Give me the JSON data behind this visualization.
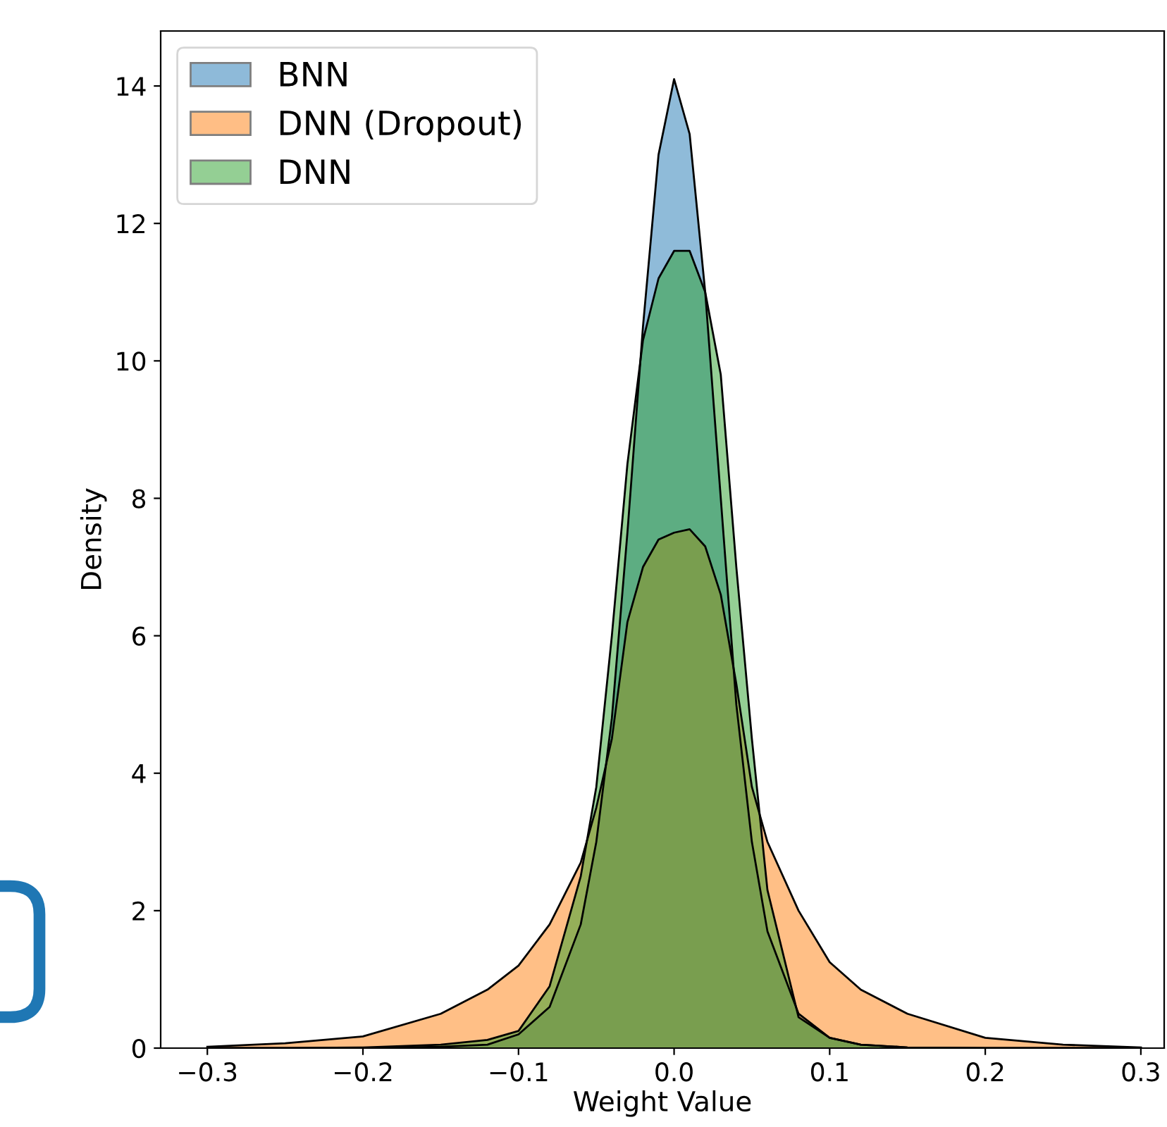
{
  "chart_data": {
    "type": "area",
    "xlabel": "Weight Value",
    "ylabel": "Density",
    "xlim": [
      -0.33,
      0.315
    ],
    "ylim": [
      0,
      14.8
    ],
    "xticks": [
      {
        "value": -0.3,
        "label": "−0.3"
      },
      {
        "value": -0.2,
        "label": "−0.2"
      },
      {
        "value": -0.1,
        "label": "−0.1"
      },
      {
        "value": 0,
        "label": "0.0"
      },
      {
        "value": 0.1,
        "label": "0.1"
      },
      {
        "value": 0.2,
        "label": "0.2"
      },
      {
        "value": 0.3,
        "label": "0.3"
      }
    ],
    "yticks": [
      0,
      2,
      4,
      6,
      8,
      10,
      12,
      14
    ],
    "legend": "top left",
    "grid": false,
    "x": [
      -0.3,
      -0.25,
      -0.2,
      -0.15,
      -0.12,
      -0.1,
      -0.08,
      -0.06,
      -0.05,
      -0.04,
      -0.03,
      -0.02,
      -0.01,
      0,
      0.01,
      0.02,
      0.03,
      0.04,
      0.05,
      0.06,
      0.08,
      0.1,
      0.12,
      0.15,
      0.2,
      0.25,
      0.3
    ],
    "series": [
      {
        "name": "BNN",
        "color": "#1f77b4",
        "values": [
          0,
          0,
          0,
          0.02,
          0.05,
          0.2,
          0.6,
          1.8,
          3.0,
          4.8,
          7.5,
          10.5,
          13.0,
          14.1,
          13.3,
          11.0,
          8.0,
          5.0,
          3.0,
          1.7,
          0.5,
          0.15,
          0.05,
          0.01,
          0,
          0,
          0
        ]
      },
      {
        "name": "DNN (Dropout)",
        "color": "#ff7f0e",
        "values": [
          0.02,
          0.07,
          0.17,
          0.5,
          0.85,
          1.2,
          1.8,
          2.7,
          3.5,
          4.5,
          6.2,
          7.0,
          7.4,
          7.5,
          7.55,
          7.3,
          6.6,
          5.3,
          3.8,
          3.0,
          2.0,
          1.25,
          0.85,
          0.5,
          0.15,
          0.05,
          0.01
        ]
      },
      {
        "name": "DNN",
        "color": "#2ca02c",
        "values": [
          0,
          0,
          0.01,
          0.05,
          0.12,
          0.25,
          0.9,
          2.5,
          3.8,
          6.0,
          8.5,
          10.3,
          11.2,
          11.6,
          11.6,
          11.0,
          9.8,
          7.0,
          4.5,
          2.3,
          0.45,
          0.15,
          0.05,
          0.01,
          0,
          0,
          0
        ]
      }
    ]
  }
}
